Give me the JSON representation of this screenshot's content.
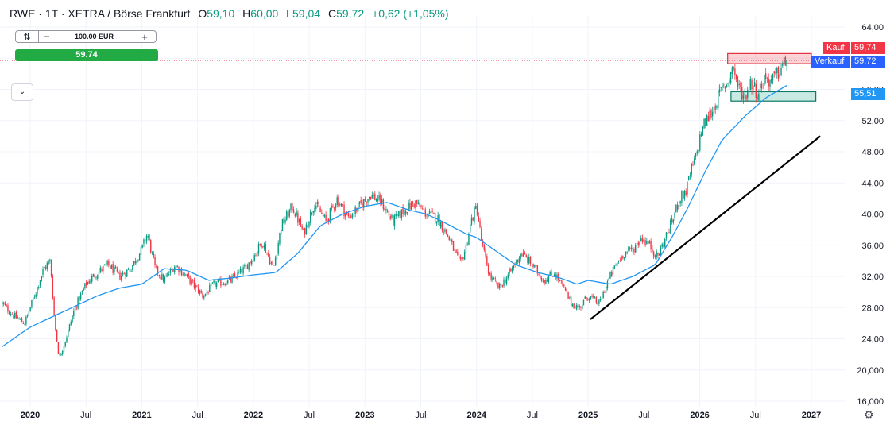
{
  "header": {
    "symbol": "RWE · 1T · XETRA / Börse Frankfurt",
    "o_label": "O",
    "o_value": "59,10",
    "h_label": "H",
    "h_value": "60,00",
    "l_label": "L",
    "l_value": "59,04",
    "c_label": "C",
    "c_value": "59,72",
    "change": "+0,62 (+1,05%)"
  },
  "order_panel": {
    "switch_icon": "swap-icon",
    "minus_label": "−",
    "quantity": "100.00 EUR",
    "plus_label": "+",
    "price_button": "59.74"
  },
  "dropdown_icon": "chevron-down-icon",
  "price_tags": {
    "kauf_label": "Kauf",
    "kauf_value": "59,74",
    "verkauf_label": "Verkauf",
    "verkauf_value": "59,72",
    "ma_value": "55,51"
  },
  "settings_icon": "gear-icon",
  "colors": {
    "up": "#089981",
    "down": "#f23645",
    "ma": "#2196f3",
    "kauf": "#f23645",
    "verkauf": "#2962ff",
    "buy_button": "#22ab45"
  },
  "chart_data": {
    "type": "candlestick",
    "y_axis_labels": [
      "64,00",
      "60,00",
      "56,00",
      "52,00",
      "48,00",
      "44,00",
      "40,00",
      "36,00",
      "32,00",
      "28,00",
      "24,00",
      "20,000",
      "16,000"
    ],
    "y_ticks": [
      64,
      60,
      56,
      52,
      48,
      44,
      40,
      36,
      32,
      28,
      24,
      20,
      16
    ],
    "ylim": [
      16,
      64
    ],
    "x_axis_labels": [
      "2020",
      "Jul",
      "2021",
      "Jul",
      "2022",
      "Jul",
      "2023",
      "Jul",
      "2024",
      "Jul",
      "2025",
      "Jul",
      "2026",
      "Jul",
      "2027"
    ],
    "x_ticks_year": [
      2020.0,
      2020.5,
      2021.0,
      2021.5,
      2022.0,
      2022.5,
      2023.0,
      2023.5,
      2024.0,
      2024.5,
      2025.0,
      2025.5,
      2026.0,
      2026.5,
      2027.0
    ],
    "xlim": [
      2019.75,
      2027.3
    ],
    "close_anchors": [
      [
        2019.75,
        28.5
      ],
      [
        2019.85,
        27.0
      ],
      [
        2019.95,
        26.0
      ],
      [
        2020.05,
        30.0
      ],
      [
        2020.12,
        33.0
      ],
      [
        2020.18,
        34.0
      ],
      [
        2020.22,
        26.0
      ],
      [
        2020.26,
        21.5
      ],
      [
        2020.32,
        24.0
      ],
      [
        2020.4,
        28.0
      ],
      [
        2020.5,
        31.0
      ],
      [
        2020.6,
        32.5
      ],
      [
        2020.7,
        33.5
      ],
      [
        2020.8,
        32.0
      ],
      [
        2020.9,
        33.0
      ],
      [
        2021.0,
        35.5
      ],
      [
        2021.05,
        37.5
      ],
      [
        2021.12,
        33.0
      ],
      [
        2021.2,
        31.5
      ],
      [
        2021.3,
        33.5
      ],
      [
        2021.4,
        32.0
      ],
      [
        2021.55,
        29.5
      ],
      [
        2021.65,
        31.0
      ],
      [
        2021.8,
        31.5
      ],
      [
        2021.92,
        33.0
      ],
      [
        2022.0,
        34.5
      ],
      [
        2022.08,
        36.5
      ],
      [
        2022.18,
        33.0
      ],
      [
        2022.25,
        38.5
      ],
      [
        2022.35,
        41.0
      ],
      [
        2022.45,
        37.5
      ],
      [
        2022.55,
        41.5
      ],
      [
        2022.65,
        39.0
      ],
      [
        2022.75,
        42.0
      ],
      [
        2022.85,
        39.5
      ],
      [
        2022.95,
        41.0
      ],
      [
        2023.05,
        42.5
      ],
      [
        2023.15,
        41.5
      ],
      [
        2023.25,
        39.0
      ],
      [
        2023.35,
        40.5
      ],
      [
        2023.45,
        41.5
      ],
      [
        2023.55,
        40.0
      ],
      [
        2023.65,
        39.5
      ],
      [
        2023.75,
        37.0
      ],
      [
        2023.85,
        33.5
      ],
      [
        2023.9,
        35.5
      ],
      [
        2023.95,
        39.0
      ],
      [
        2024.0,
        41.0
      ],
      [
        2024.05,
        36.0
      ],
      [
        2024.12,
        32.0
      ],
      [
        2024.2,
        30.5
      ],
      [
        2024.3,
        32.5
      ],
      [
        2024.4,
        35.0
      ],
      [
        2024.5,
        33.5
      ],
      [
        2024.6,
        31.5
      ],
      [
        2024.7,
        32.5
      ],
      [
        2024.78,
        30.5
      ],
      [
        2024.85,
        28.5
      ],
      [
        2024.92,
        28.0
      ],
      [
        2025.0,
        29.5
      ],
      [
        2025.1,
        28.5
      ],
      [
        2025.18,
        31.5
      ],
      [
        2025.25,
        33.5
      ],
      [
        2025.32,
        35.0
      ],
      [
        2025.4,
        35.5
      ],
      [
        2025.48,
        37.0
      ],
      [
        2025.55,
        36.0
      ],
      [
        2025.62,
        34.5
      ],
      [
        2025.68,
        36.5
      ],
      [
        2025.75,
        39.0
      ],
      [
        2025.82,
        42.0
      ],
      [
        2025.88,
        43.0
      ],
      [
        2025.92,
        45.5
      ],
      [
        2025.97,
        47.5
      ],
      [
        2026.02,
        51.0
      ],
      [
        2026.08,
        52.5
      ],
      [
        2026.12,
        53.5
      ],
      [
        2026.18,
        55.5
      ],
      [
        2026.25,
        57.0
      ],
      [
        2026.3,
        59.0
      ],
      [
        2026.34,
        56.5
      ],
      [
        2026.4,
        55.0
      ],
      [
        2026.46,
        57.0
      ],
      [
        2026.52,
        55.5
      ],
      [
        2026.58,
        57.5
      ],
      [
        2026.64,
        57.0
      ],
      [
        2026.7,
        58.0
      ],
      [
        2026.74,
        59.0
      ],
      [
        2026.78,
        59.72
      ]
    ],
    "ma_anchors": [
      [
        2019.75,
        23.0
      ],
      [
        2019.9,
        24.5
      ],
      [
        2020.0,
        25.5
      ],
      [
        2020.15,
        26.5
      ],
      [
        2020.3,
        27.5
      ],
      [
        2020.45,
        28.5
      ],
      [
        2020.6,
        29.5
      ],
      [
        2020.8,
        30.5
      ],
      [
        2021.0,
        31.0
      ],
      [
        2021.05,
        31.5
      ],
      [
        2021.2,
        33.0
      ],
      [
        2021.4,
        32.8
      ],
      [
        2021.6,
        31.5
      ],
      [
        2021.8,
        31.8
      ],
      [
        2022.0,
        32.2
      ],
      [
        2022.2,
        32.5
      ],
      [
        2022.4,
        35.0
      ],
      [
        2022.6,
        38.5
      ],
      [
        2022.8,
        40.0
      ],
      [
        2023.0,
        41.0
      ],
      [
        2023.2,
        41.5
      ],
      [
        2023.4,
        40.5
      ],
      [
        2023.55,
        40.0
      ],
      [
        2023.7,
        39.0
      ],
      [
        2023.9,
        37.5
      ],
      [
        2024.0,
        37.0
      ],
      [
        2024.15,
        35.5
      ],
      [
        2024.35,
        33.5
      ],
      [
        2024.55,
        32.5
      ],
      [
        2024.75,
        31.8
      ],
      [
        2024.9,
        31.0
      ],
      [
        2025.0,
        31.5
      ],
      [
        2025.2,
        31.0
      ],
      [
        2025.4,
        32.0
      ],
      [
        2025.6,
        33.5
      ],
      [
        2025.75,
        37.0
      ],
      [
        2025.9,
        41.0
      ],
      [
        2026.05,
        45.5
      ],
      [
        2026.2,
        49.5
      ],
      [
        2026.4,
        52.5
      ],
      [
        2026.6,
        55.0
      ],
      [
        2026.78,
        56.5
      ]
    ],
    "trendline": {
      "from": [
        2025.02,
        26.5
      ],
      "to": [
        2027.08,
        50.0
      ]
    },
    "resistance_zone": {
      "x": [
        2026.25,
        2027.0
      ],
      "y": [
        59.3,
        60.6
      ]
    },
    "support_zone": {
      "x": [
        2026.28,
        2027.04
      ],
      "y": [
        54.5,
        55.7
      ]
    },
    "current_price": 59.72,
    "kauf": 59.74,
    "verkauf": 59.72,
    "ma_last": 55.51
  }
}
